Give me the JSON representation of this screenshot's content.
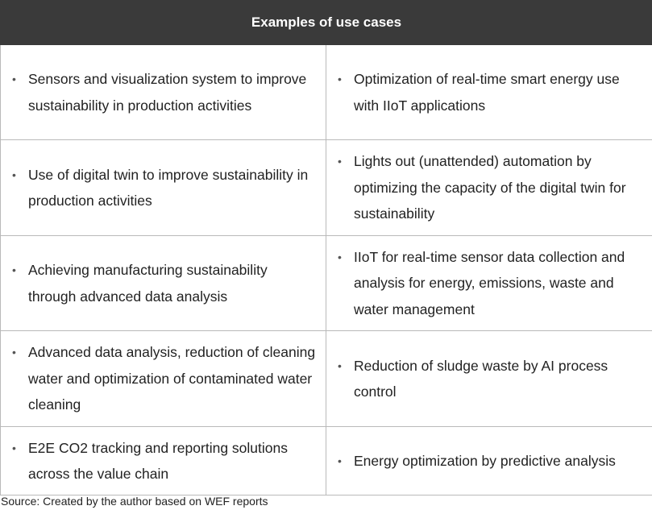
{
  "table": {
    "header": "Examples of use cases",
    "bullet_glyph": "•",
    "rows": [
      {
        "left": "Sensors and visualization system to improve sustainability in production activities",
        "right": "Optimization of real-time smart energy use with IIoT applications"
      },
      {
        "left": "Use of digital twin to improve sustainability in production activities",
        "right": "Lights out (unattended) automation by optimizing the capacity of the digital twin for sustainability"
      },
      {
        "left": "Achieving manufacturing sustainability through advanced data analysis",
        "right": "IIoT for real-time sensor data collection and analysis for energy, emissions, waste and water management"
      },
      {
        "left": "Advanced data analysis, reduction of cleaning water and optimization of contaminated water cleaning",
        "right": "Reduction of sludge waste by AI process control"
      },
      {
        "left": "E2E CO2 tracking and reporting solutions across the value chain",
        "right": "Energy optimization by predictive analysis"
      }
    ]
  },
  "source": "Source: Created by the author based on WEF reports"
}
